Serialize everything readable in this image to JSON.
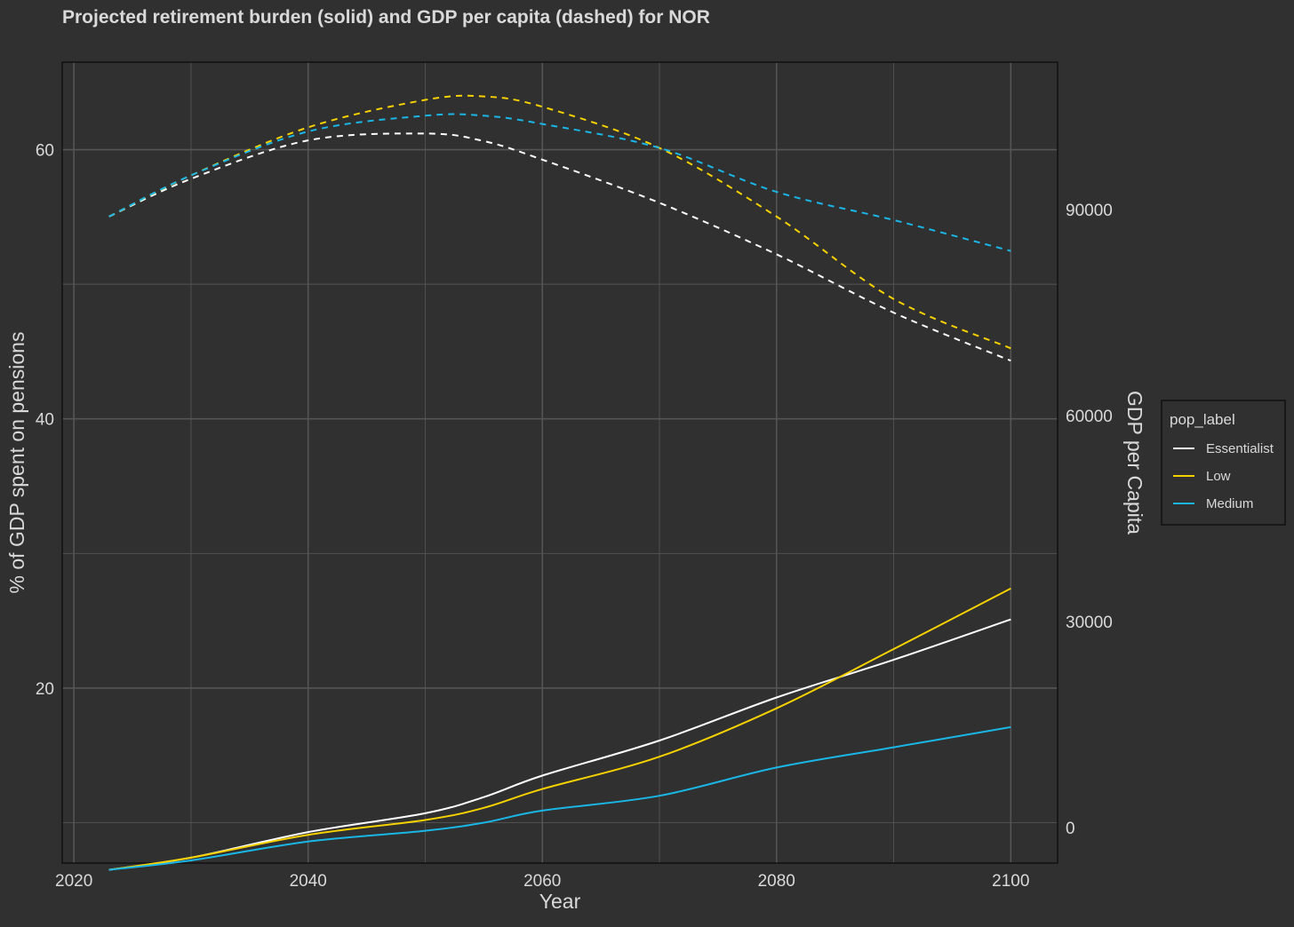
{
  "chart_data": {
    "type": "line",
    "title": "Projected retirement burden (solid) and GDP per capita (dashed) for NOR",
    "xlabel": "Year",
    "ylabel_left": "% of GDP spent on pensions",
    "ylabel_right": "GDP per Capita",
    "x_ticks": [
      "2020",
      "2040",
      "2060",
      "2080",
      "2100"
    ],
    "y_left_ticks": [
      "20",
      "40",
      "60"
    ],
    "y_right_ticks": [
      "0",
      "30000",
      "60000",
      "90000"
    ],
    "xlim": [
      2019,
      2104
    ],
    "ylim_left": [
      7,
      66.5
    ],
    "ylim_right": [
      -5200,
      111500
    ],
    "grid": true,
    "legend": {
      "title": "pop_label",
      "position": "right",
      "entries": [
        "Essentialist",
        "Low",
        "Medium"
      ]
    },
    "colors": {
      "background": "#303030",
      "grid": "#555555",
      "text": "#d9d9d9",
      "Essentialist": "#ffffff",
      "Low": "#f5d100",
      "Medium": "#1ab6e6"
    },
    "x": [
      2023,
      2030,
      2040,
      2050,
      2055,
      2060,
      2070,
      2080,
      2090,
      2100
    ],
    "series_pension": [
      {
        "name": "Essentialist",
        "values": [
          6.5,
          7.4,
          9.3,
          10.7,
          11.9,
          13.5,
          16.1,
          19.3,
          22.1,
          25.1
        ]
      },
      {
        "name": "Low",
        "values": [
          6.5,
          7.4,
          9.1,
          10.2,
          11.1,
          12.5,
          14.9,
          18.5,
          22.9,
          27.4
        ]
      },
      {
        "name": "Medium",
        "values": [
          6.5,
          7.2,
          8.6,
          9.4,
          10.0,
          10.9,
          12.0,
          14.1,
          15.6,
          17.1
        ]
      }
    ],
    "series_gdp": [
      {
        "name": "Essentialist",
        "values": [
          89000,
          94500,
          100100,
          101100,
          100000,
          97300,
          91000,
          83500,
          75000,
          68000
        ]
      },
      {
        "name": "Low",
        "values": [
          89000,
          95000,
          102000,
          106000,
          106500,
          105000,
          99000,
          89000,
          77000,
          69800
        ]
      },
      {
        "name": "Medium",
        "values": [
          89000,
          95000,
          101400,
          103700,
          103700,
          102500,
          99000,
          92600,
          88500,
          84000
        ]
      }
    ]
  }
}
